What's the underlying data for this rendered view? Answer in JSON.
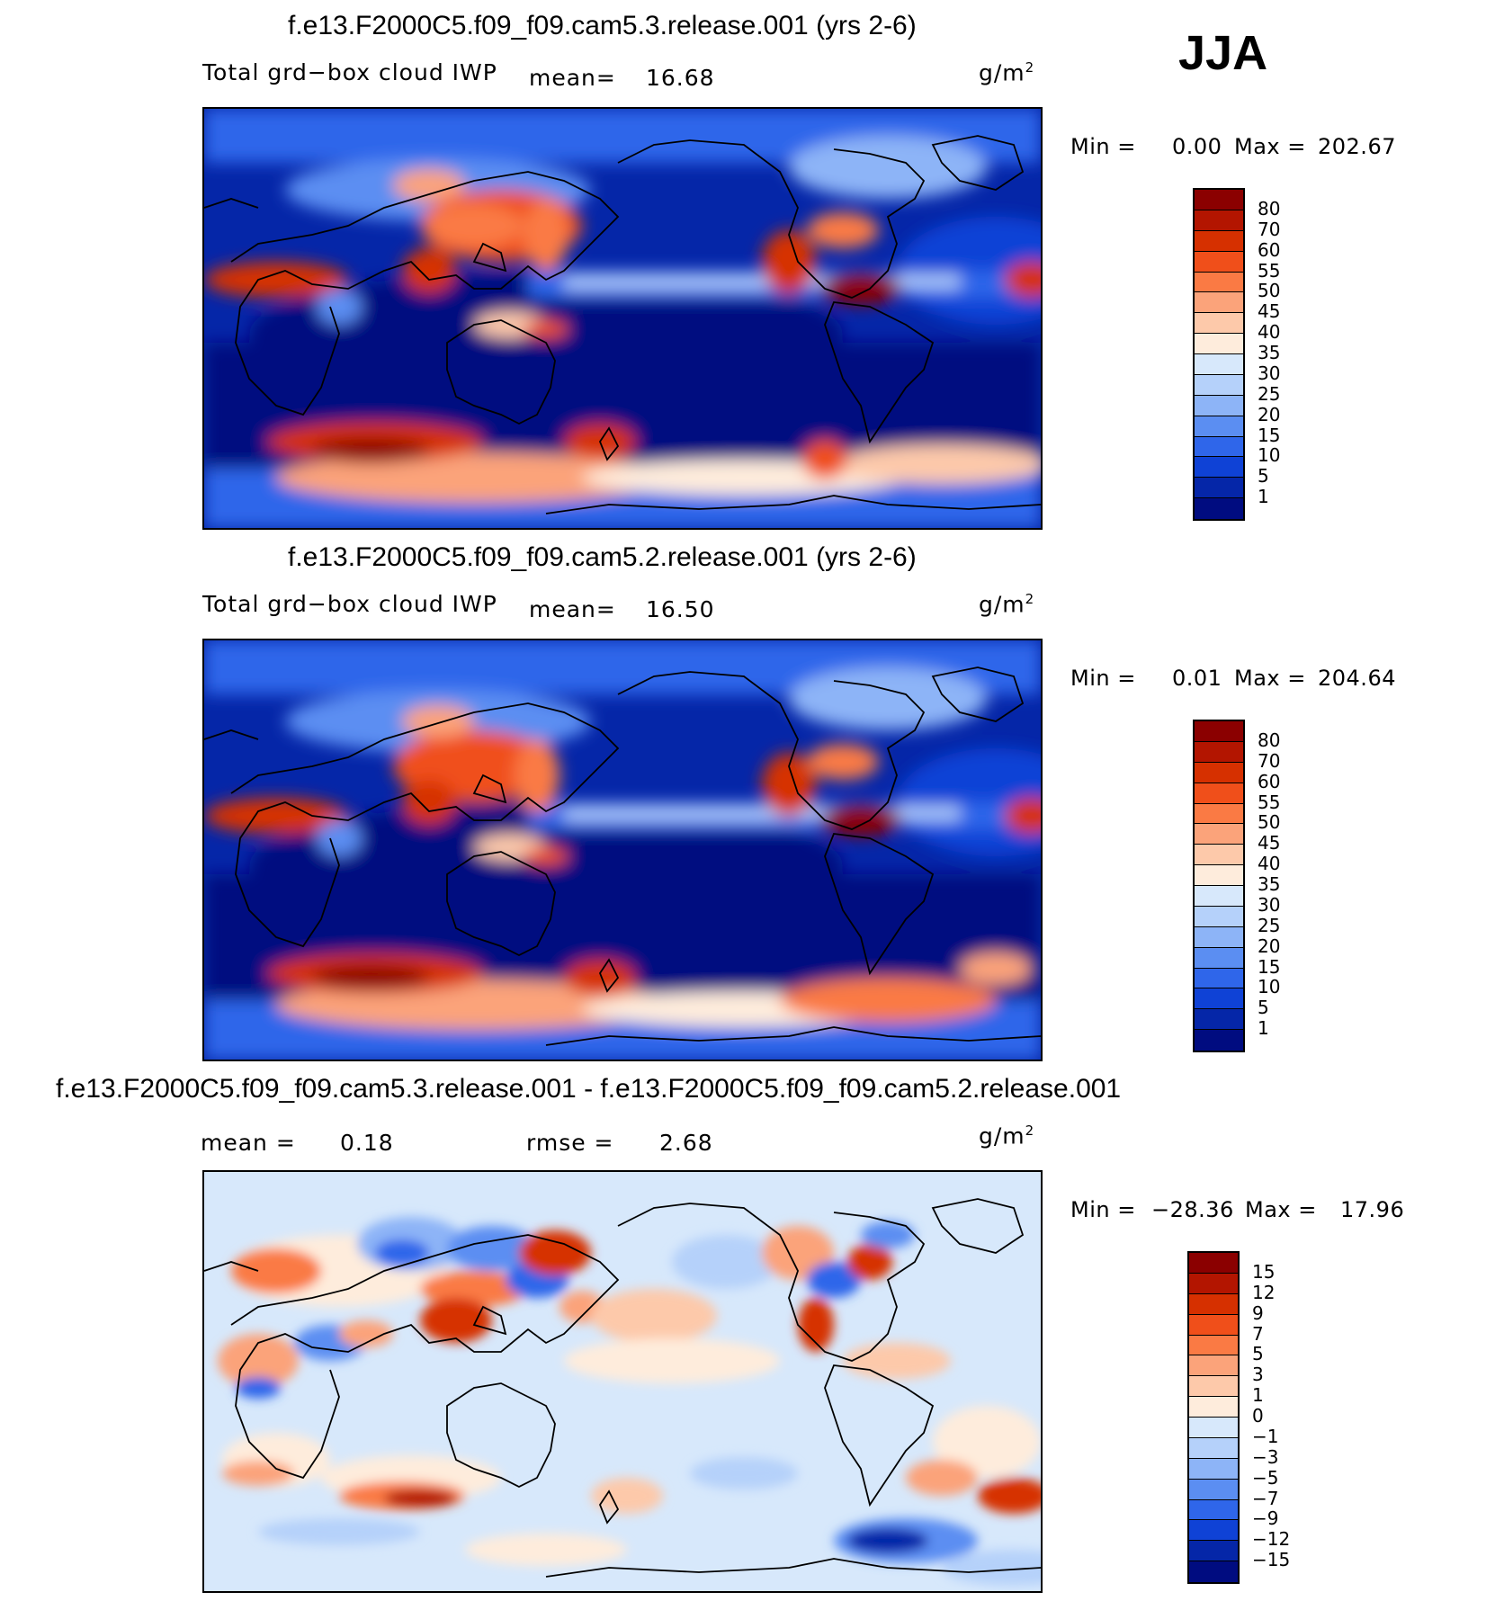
{
  "season": "JJA",
  "units": "g/m",
  "units_sup": "2",
  "panels": [
    {
      "title": "f.e13.F2000C5.f09_f09.cam5.3.release.001 (yrs 2-6)",
      "variable": "Total grd−box cloud IWP",
      "stat1_label": "mean=",
      "stat1_value": "16.68",
      "min_label": "Min =",
      "min_value": "0.00",
      "max_label": "Max =",
      "max_value": "202.67",
      "colorbar": {
        "labels": [
          "80",
          "70",
          "60",
          "55",
          "50",
          "45",
          "40",
          "35",
          "30",
          "25",
          "20",
          "15",
          "10",
          "5",
          "1"
        ],
        "colors": [
          "#8b0000",
          "#b31500",
          "#d63000",
          "#f04f1a",
          "#fa7a44",
          "#fba37a",
          "#fdc9aa",
          "#feecdc",
          "#d7e8fb",
          "#b5d1fa",
          "#8db4f7",
          "#5b8ef2",
          "#2f66ea",
          "#0f42d6",
          "#0526a8",
          "#000c80"
        ]
      }
    },
    {
      "title": "f.e13.F2000C5.f09_f09.cam5.2.release.001 (yrs 2-6)",
      "variable": "Total grd−box cloud IWP",
      "stat1_label": "mean=",
      "stat1_value": "16.50",
      "min_label": "Min =",
      "min_value": "0.01",
      "max_label": "Max =",
      "max_value": "204.64",
      "colorbar": {
        "labels": [
          "80",
          "70",
          "60",
          "55",
          "50",
          "45",
          "40",
          "35",
          "30",
          "25",
          "20",
          "15",
          "10",
          "5",
          "1"
        ],
        "colors": [
          "#8b0000",
          "#b31500",
          "#d63000",
          "#f04f1a",
          "#fa7a44",
          "#fba37a",
          "#fdc9aa",
          "#feecdc",
          "#d7e8fb",
          "#b5d1fa",
          "#8db4f7",
          "#5b8ef2",
          "#2f66ea",
          "#0f42d6",
          "#0526a8",
          "#000c80"
        ]
      }
    },
    {
      "title": "f.e13.F2000C5.f09_f09.cam5.3.release.001 - f.e13.F2000C5.f09_f09.cam5.2.release.001",
      "stat1_label": "mean =",
      "stat1_value": "0.18",
      "stat2_label": "rmse =",
      "stat2_value": "2.68",
      "min_label": "Min =",
      "min_value": "−28.36",
      "max_label": "Max =",
      "max_value": "17.96",
      "colorbar": {
        "labels": [
          "15",
          "12",
          "9",
          "7",
          "5",
          "3",
          "1",
          "0",
          "−1",
          "−3",
          "−5",
          "−7",
          "−9",
          "−12",
          "−15"
        ],
        "colors": [
          "#8b0000",
          "#b31500",
          "#d63000",
          "#f04f1a",
          "#fa7a44",
          "#fba37a",
          "#fdc9aa",
          "#feecdc",
          "#d7e8fb",
          "#b5d1fa",
          "#8db4f7",
          "#5b8ef2",
          "#2f66ea",
          "#0f42d6",
          "#0526a8",
          "#000c80"
        ]
      }
    }
  ]
}
